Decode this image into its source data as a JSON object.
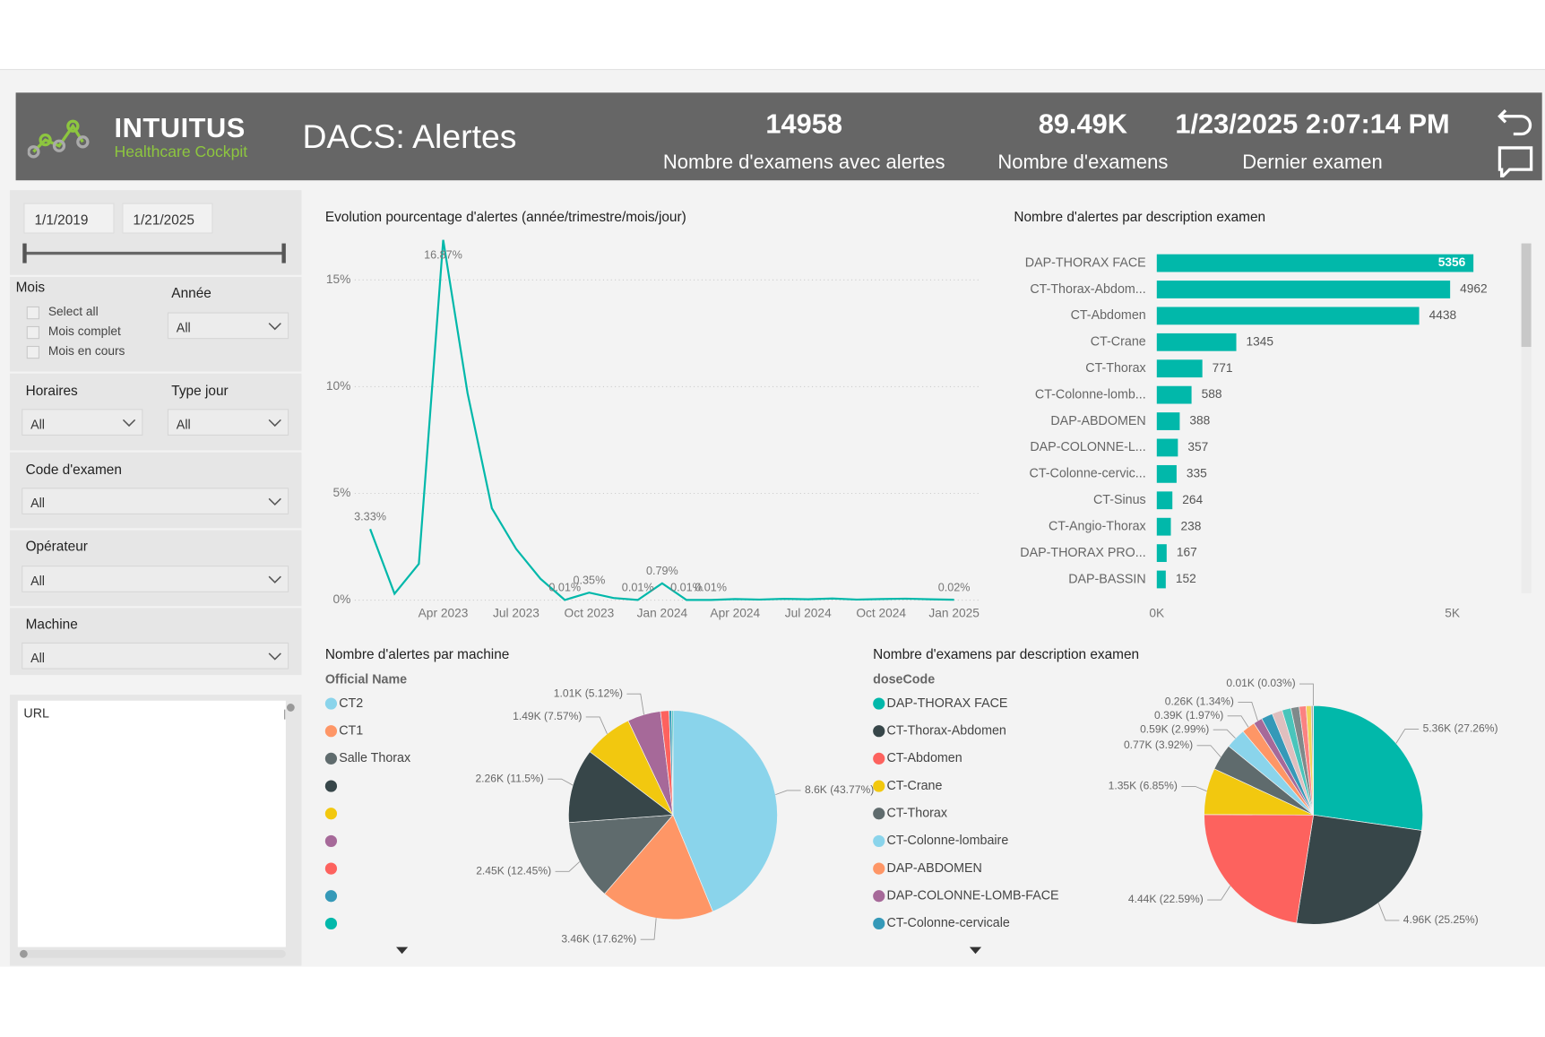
{
  "header": {
    "brand": "INTUITUS",
    "tagline": "Healthcare Cockpit",
    "title": "DACS: Alertes"
  },
  "kpis": [
    {
      "value": 14958,
      "label": "Nombre d'examens avec alertes"
    },
    {
      "value": "89.49K",
      "label": "Nombre d'examens"
    },
    {
      "value": "1/23/2025 2:07:14 PM",
      "label": "Dernier examen"
    }
  ],
  "filters": {
    "date_start": "1/1/2019",
    "date_end": "1/21/2025",
    "mois": {
      "label": "Mois",
      "options": [
        "Select all",
        "Mois complet",
        "Mois en cours"
      ]
    },
    "dropdowns": [
      {
        "label": "Année",
        "value": "All"
      },
      {
        "label": "Horaires",
        "value": "All"
      },
      {
        "label": "Type jour",
        "value": "All"
      },
      {
        "label": "Code d'examen",
        "value": "All"
      },
      {
        "label": "Opérateur",
        "value": "All"
      },
      {
        "label": "Machine",
        "value": "All"
      }
    ],
    "url": "URL"
  },
  "chart_data": [
    {
      "type": "line",
      "title": "Evolution pourcentage d'alertes (année/trimestre/mois/jour)",
      "x": [
        "2023-01",
        "2023-02",
        "2023-03",
        "2023-04",
        "2023-05",
        "2023-06",
        "2023-07",
        "2023-08",
        "2023-09",
        "2023-10",
        "2023-11",
        "2023-12",
        "2024-01",
        "2024-02",
        "2024-03",
        "2024-04",
        "2024-05",
        "2024-06",
        "2024-07",
        "2024-08",
        "2024-09",
        "2024-10",
        "2024-11",
        "2024-12",
        "2025-01"
      ],
      "values": [
        3.33,
        0.3,
        1.7,
        16.87,
        9.7,
        4.3,
        2.4,
        1.0,
        0.01,
        0.35,
        0.1,
        0.01,
        0.79,
        0.01,
        0.01,
        0.05,
        0.03,
        0.06,
        0.04,
        0.08,
        0.03,
        0.05,
        0.07,
        0.04,
        0.02
      ],
      "value_labels": [
        "3.33%",
        null,
        null,
        "16.87%",
        null,
        null,
        null,
        null,
        "0.01%",
        "0.35%",
        null,
        "0.01%",
        "0.79%",
        "0.01%",
        "0.01%",
        null,
        null,
        null,
        null,
        null,
        null,
        null,
        null,
        null,
        "0.02%"
      ],
      "color": "#01b8aa",
      "xlim": [
        "2022-12",
        "2025-02"
      ],
      "xticks": [
        {
          "value": "2023-04",
          "label": "Apr 2023"
        },
        {
          "value": "2023-07",
          "label": "Jul 2023"
        },
        {
          "value": "2023-10",
          "label": "Oct 2023"
        },
        {
          "value": "2024-01",
          "label": "Jan 2024"
        },
        {
          "value": "2024-04",
          "label": "Apr 2024"
        },
        {
          "value": "2024-07",
          "label": "Jul 2024"
        },
        {
          "value": "2024-10",
          "label": "Oct 2024"
        },
        {
          "value": "2025-01",
          "label": "Jan 2025"
        }
      ],
      "ylim": [
        0,
        17
      ],
      "yticks": [
        {
          "value": 0,
          "label": "0%"
        },
        {
          "value": 5,
          "label": "5%"
        },
        {
          "value": 10,
          "label": "10%"
        },
        {
          "value": 15,
          "label": "15%"
        }
      ],
      "grid": true
    },
    {
      "type": "bar",
      "orientation": "horizontal",
      "title": "Nombre d'alertes par description examen",
      "categories": [
        "DAP-THORAX FACE",
        "CT-Thorax-Abdom...",
        "CT-Abdomen",
        "CT-Crane",
        "CT-Thorax",
        "CT-Colonne-lomb...",
        "DAP-ABDOMEN",
        "DAP-COLONNE-L...",
        "CT-Colonne-cervic...",
        "CT-Sinus",
        "CT-Angio-Thorax",
        "DAP-THORAX PRO...",
        "DAP-BASSIN"
      ],
      "values": [
        5356,
        4962,
        4438,
        1345,
        771,
        588,
        388,
        357,
        335,
        264,
        238,
        167,
        152
      ],
      "color": "#01b8aa",
      "xlim": [
        0,
        5700
      ],
      "xticks": [
        {
          "value": 0,
          "label": "0K"
        },
        {
          "value": 5000,
          "label": "5K"
        }
      ]
    },
    {
      "type": "pie",
      "title": "Nombre d'alertes par machine",
      "legend_title": "Official Name",
      "categories": [
        "CT2",
        "CT1",
        "Salle Thorax",
        null,
        null,
        null,
        null,
        null,
        null
      ],
      "values": [
        8600,
        3460,
        2450,
        2260,
        1490,
        1010,
        260,
        80,
        38
      ],
      "value_labels": [
        "8.6K (43.77%)",
        "3.46K (17.62%)",
        "2.45K (12.45%)",
        "2.26K (11.5%)",
        "1.49K (7.57%)",
        "1.01K (5.12%)",
        null,
        null,
        null
      ],
      "colors": [
        "#8ad4eb",
        "#fe9666",
        "#5f6b6d",
        "#374649",
        "#f2c80f",
        "#a66999",
        "#fd625e",
        "#3599b8",
        "#01b8aa"
      ]
    },
    {
      "type": "pie",
      "title": "Nombre d'examens par description examen",
      "legend_title": "doseCode",
      "categories": [
        "DAP-THORAX FACE",
        "CT-Thorax-Abdomen",
        "CT-Abdomen",
        "CT-Crane",
        "CT-Thorax",
        "CT-Colonne-lombaire",
        "DAP-ABDOMEN",
        "DAP-COLONNE-LOMB-FACE",
        "CT-Colonne-cervicale",
        null,
        null,
        null,
        null,
        null,
        null,
        null
      ],
      "values": [
        5360,
        4960,
        4440,
        1350,
        770,
        590,
        390,
        260,
        330,
        300,
        260,
        240,
        200,
        150,
        52,
        10
      ],
      "value_labels": [
        "5.36K (27.26%)",
        "4.96K (25.25%)",
        "4.44K (22.59%)",
        "1.35K (6.85%)",
        "0.77K (3.92%)",
        "0.59K (2.99%)",
        "0.39K (1.97%)",
        "0.26K (1.34%)",
        null,
        null,
        null,
        null,
        null,
        null,
        null,
        "0.01K (0.03%)"
      ],
      "colors": [
        "#01b8aa",
        "#374649",
        "#fd625e",
        "#f2c80f",
        "#5f6b6d",
        "#8ad4eb",
        "#fe9666",
        "#a66999",
        "#3599b8",
        "#dfbfbf",
        "#4ac5bb",
        "#7f898a",
        "#fb8281",
        "#f4d25a",
        "#9aa3a4",
        "#a4ddee"
      ]
    }
  ]
}
